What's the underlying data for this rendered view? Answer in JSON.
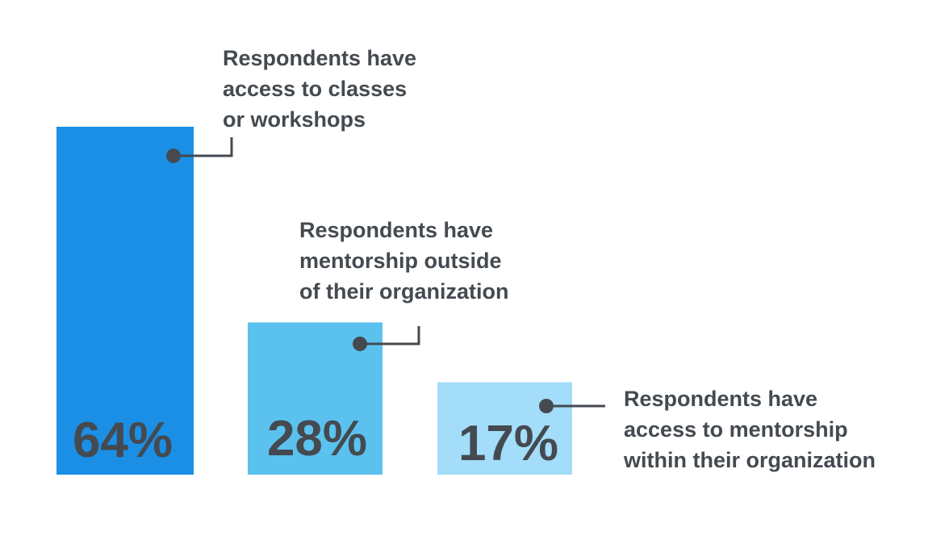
{
  "chart_data": {
    "type": "bar",
    "categories": [
      "Respondents have access to classes or workshops",
      "Respondents have mentorship outside of their organization",
      "Respondents have access to mentorship within their organization"
    ],
    "values": [
      64,
      28,
      17
    ],
    "value_labels": [
      "64%",
      "28%",
      "17%"
    ],
    "annotations": [
      [
        "Respondents have",
        "access to classes",
        "or workshops"
      ],
      [
        "Respondents have",
        "mentorship outside",
        "of their organization"
      ],
      [
        "Respondents have",
        "access to mentorship",
        "within their organization"
      ]
    ],
    "colors": [
      "#1b8fe6",
      "#5bc2ef",
      "#a3ddf9"
    ],
    "text_color": "#444a50",
    "title": "",
    "xlabel": "",
    "ylabel": "",
    "ylim": [
      0,
      100
    ],
    "grid": false,
    "legend": "none"
  }
}
